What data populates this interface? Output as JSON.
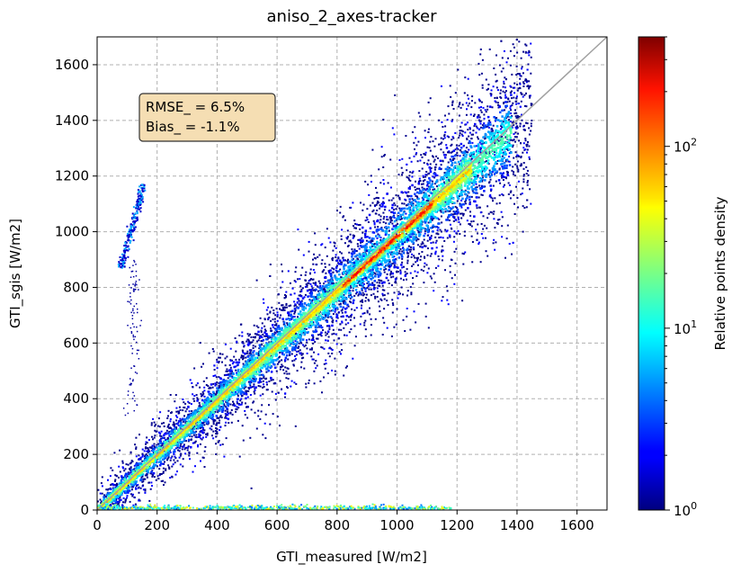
{
  "chart_data": {
    "type": "heatmap",
    "title": "aniso_2_axes-tracker",
    "xlabel": "GTI_measured [W/m2]",
    "ylabel": "GTI_sgis [W/m2]",
    "xlim": [
      0,
      1700
    ],
    "ylim": [
      0,
      1700
    ],
    "xticks": [
      0,
      200,
      400,
      600,
      800,
      1000,
      1200,
      1400,
      1600
    ],
    "yticks": [
      0,
      200,
      400,
      600,
      800,
      1000,
      1200,
      1400,
      1600
    ],
    "grid": true,
    "reference_line": {
      "x": [
        0,
        1700
      ],
      "y": [
        0,
        1700
      ],
      "color": "#a0a0a0"
    },
    "annotation": {
      "lines": [
        "RMSE_ = 6.5%",
        "Bias_ = -1.1%"
      ],
      "position": "upper-left",
      "background": "#f5deb3"
    },
    "colorbar": {
      "label": "Relative points density",
      "scale": "log",
      "range": [
        1,
        400
      ],
      "ticks": [
        {
          "value": 1,
          "base": "10",
          "exp": "0"
        },
        {
          "value": 10,
          "base": "10",
          "exp": "1"
        },
        {
          "value": 100,
          "base": "10",
          "exp": "2"
        }
      ],
      "colormap": "jet"
    }
  }
}
